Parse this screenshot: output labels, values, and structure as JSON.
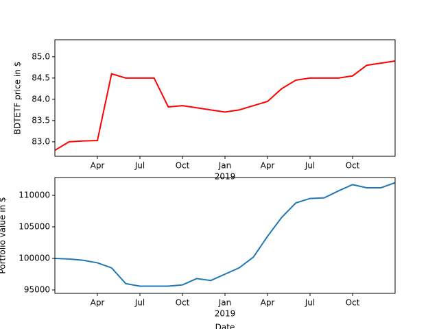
{
  "chart_data": [
    {
      "type": "line",
      "ylabel": "BDTETF price in $",
      "x": [
        "2018-01",
        "2018-02",
        "2018-03",
        "2018-04",
        "2018-05",
        "2018-06",
        "2018-07",
        "2018-08",
        "2018-09",
        "2018-10",
        "2018-11",
        "2018-12",
        "2019-01",
        "2019-02",
        "2019-03",
        "2019-04",
        "2019-05",
        "2019-06",
        "2019-07",
        "2019-08",
        "2019-09",
        "2019-10",
        "2019-11",
        "2019-12",
        "2020-01"
      ],
      "series": [
        {
          "name": "BDTETF",
          "color": "#ff0000",
          "values": [
            82.8,
            83.0,
            83.02,
            83.03,
            84.6,
            84.5,
            84.5,
            84.5,
            83.82,
            83.85,
            83.8,
            83.75,
            83.7,
            83.75,
            83.85,
            83.95,
            84.25,
            84.45,
            84.5,
            84.5,
            84.5,
            84.55,
            84.8,
            84.85,
            84.9
          ]
        }
      ],
      "xlim": [
        "2018-01",
        "2020-01"
      ],
      "xticks": [
        {
          "value": "2018-04",
          "label": "Apr"
        },
        {
          "value": "2018-07",
          "label": "Jul"
        },
        {
          "value": "2018-10",
          "label": "Oct"
        },
        {
          "value": "2019-01",
          "label": "Jan"
        },
        {
          "value": "2019-04",
          "label": "Apr"
        },
        {
          "value": "2019-07",
          "label": "Jul"
        },
        {
          "value": "2019-10",
          "label": "Oct"
        }
      ],
      "year_label": "2019",
      "ylim": [
        82.66,
        85.4
      ],
      "yticks": [
        {
          "value": 83,
          "label": "83.0"
        },
        {
          "value": 83.5,
          "label": "83.5"
        },
        {
          "value": 84,
          "label": "84.0"
        },
        {
          "value": 84.5,
          "label": "84.5"
        },
        {
          "value": 85,
          "label": "85.0"
        }
      ]
    },
    {
      "type": "line",
      "ylabel": "Portfolio value in $",
      "xlabel": "Date",
      "x": [
        "2018-01",
        "2018-02",
        "2018-03",
        "2018-04",
        "2018-05",
        "2018-06",
        "2018-07",
        "2018-08",
        "2018-09",
        "2018-10",
        "2018-11",
        "2018-12",
        "2019-01",
        "2019-02",
        "2019-03",
        "2019-04",
        "2019-05",
        "2019-06",
        "2019-07",
        "2019-08",
        "2019-09",
        "2019-10",
        "2019-11",
        "2019-12",
        "2020-01"
      ],
      "series": [
        {
          "name": "Portfolio",
          "color": "#1f77b4",
          "values": [
            100000,
            99900,
            99700,
            99300,
            98500,
            96000,
            95600,
            95600,
            95600,
            95800,
            96800,
            96500,
            97500,
            98500,
            100200,
            103500,
            106500,
            108800,
            109500,
            109600,
            110700,
            111700,
            111200,
            111200,
            112000
          ]
        }
      ],
      "xlim": [
        "2018-01",
        "2020-01"
      ],
      "xticks": [
        {
          "value": "2018-04",
          "label": "Apr"
        },
        {
          "value": "2018-07",
          "label": "Jul"
        },
        {
          "value": "2018-10",
          "label": "Oct"
        },
        {
          "value": "2019-01",
          "label": "Jan"
        },
        {
          "value": "2019-04",
          "label": "Apr"
        },
        {
          "value": "2019-07",
          "label": "Jul"
        },
        {
          "value": "2019-10",
          "label": "Oct"
        }
      ],
      "year_label": "2019",
      "ylim": [
        94457,
        112826
      ],
      "yticks": [
        95000,
        100000,
        105000,
        110000
      ]
    }
  ]
}
